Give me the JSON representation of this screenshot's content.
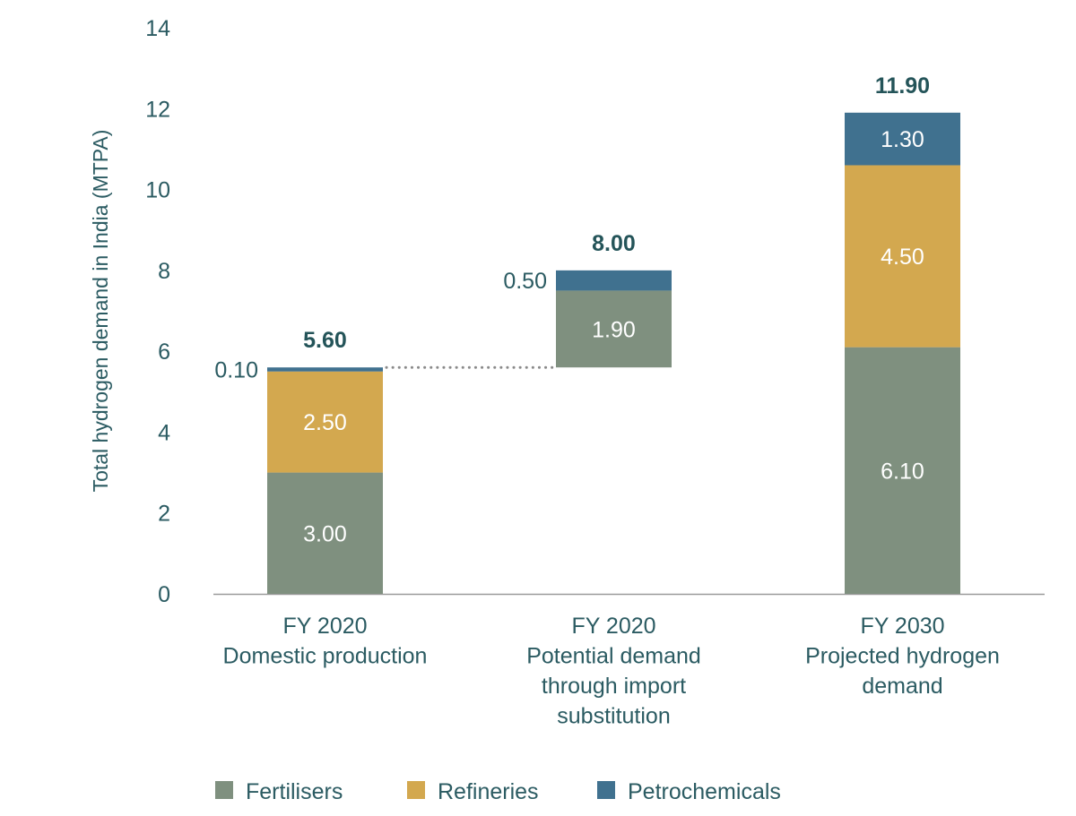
{
  "chart_data": {
    "type": "bar",
    "stacked": true,
    "waterfall": true,
    "ylabel": "Total hydrogen demand in India (MTPA)",
    "ylim": [
      0,
      14
    ],
    "yticks": [
      0,
      2,
      4,
      6,
      8,
      10,
      12,
      14
    ],
    "grid": false,
    "legend_position": "bottom",
    "categories": [
      {
        "lines": [
          "FY 2020",
          "Domestic production"
        ],
        "base": 0,
        "total_label": "5.60"
      },
      {
        "lines": [
          "FY 2020",
          "Potential demand",
          "through import",
          "substitution"
        ],
        "base": 5.6,
        "total_label": "8.00"
      },
      {
        "lines": [
          "FY 2030",
          "Projected hydrogen",
          "demand"
        ],
        "base": 0,
        "total_label": "11.90"
      }
    ],
    "series": [
      {
        "name": "Fertilisers",
        "color": "#7f907f",
        "values": [
          3.0,
          1.9,
          6.1
        ],
        "labels": [
          "3.00",
          "1.90",
          "6.10"
        ]
      },
      {
        "name": "Refineries",
        "color": "#d3a84f",
        "values": [
          2.5,
          0,
          4.5
        ],
        "labels": [
          "2.50",
          "",
          "4.50"
        ]
      },
      {
        "name": "Petrochemicals",
        "color": "#40718f",
        "values": [
          0.1,
          0.5,
          1.3
        ],
        "labels": [
          "0.10",
          "0.50",
          "1.30"
        ]
      }
    ],
    "connector": {
      "from_category": 0,
      "to_category": 1,
      "value": 5.6,
      "style": "dotted"
    }
  }
}
